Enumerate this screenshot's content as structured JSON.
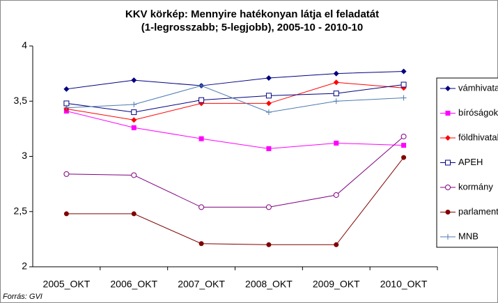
{
  "chart_data": {
    "type": "line",
    "title_lines": [
      "KKV körkép: Mennyire hatékonyan látja el feladatát",
      "(1-legrosszabb; 5-legjobb), 2005-10 - 2010-10"
    ],
    "source": "Forrás: GVI",
    "categories": [
      "2005_OKT",
      "2006_OKT",
      "2007_OKT",
      "2008_OKT",
      "2009_OKT",
      "2010_OKT"
    ],
    "ylim": [
      2,
      4
    ],
    "yticks": [
      2,
      {
        "value": 2.5,
        "label": "2,5"
      },
      3,
      {
        "value": 3.5,
        "label": "3,5"
      },
      4
    ],
    "legend": "right",
    "series": [
      {
        "name": "vámhivatal",
        "color": "#000080",
        "marker": "diamond",
        "values": [
          3.61,
          3.69,
          3.64,
          3.71,
          3.75,
          3.77
        ]
      },
      {
        "name": "bíróságok",
        "color": "#ff00ff",
        "marker": "square",
        "values": [
          3.41,
          3.26,
          3.16,
          3.07,
          3.12,
          3.1
        ]
      },
      {
        "name": "földhivatalok",
        "color": "#ff0000",
        "marker": "diamond",
        "values": [
          3.43,
          3.33,
          3.48,
          3.48,
          3.67,
          3.62
        ]
      },
      {
        "name": "APEH",
        "color": "#000080",
        "marker": "square-open",
        "values": [
          3.48,
          3.4,
          3.51,
          3.55,
          3.57,
          3.65
        ]
      },
      {
        "name": "kormány",
        "color": "#800080",
        "marker": "circle-open",
        "values": [
          2.84,
          2.83,
          2.54,
          2.54,
          2.65,
          3.18
        ]
      },
      {
        "name": "parlament",
        "color": "#800000",
        "marker": "circle",
        "values": [
          2.48,
          2.48,
          2.21,
          2.2,
          2.2,
          2.99
        ]
      },
      {
        "name": "MNB",
        "color": "#4a7ab0",
        "marker": "plus",
        "values": [
          3.44,
          3.47,
          3.64,
          3.4,
          3.5,
          3.53
        ]
      }
    ]
  }
}
